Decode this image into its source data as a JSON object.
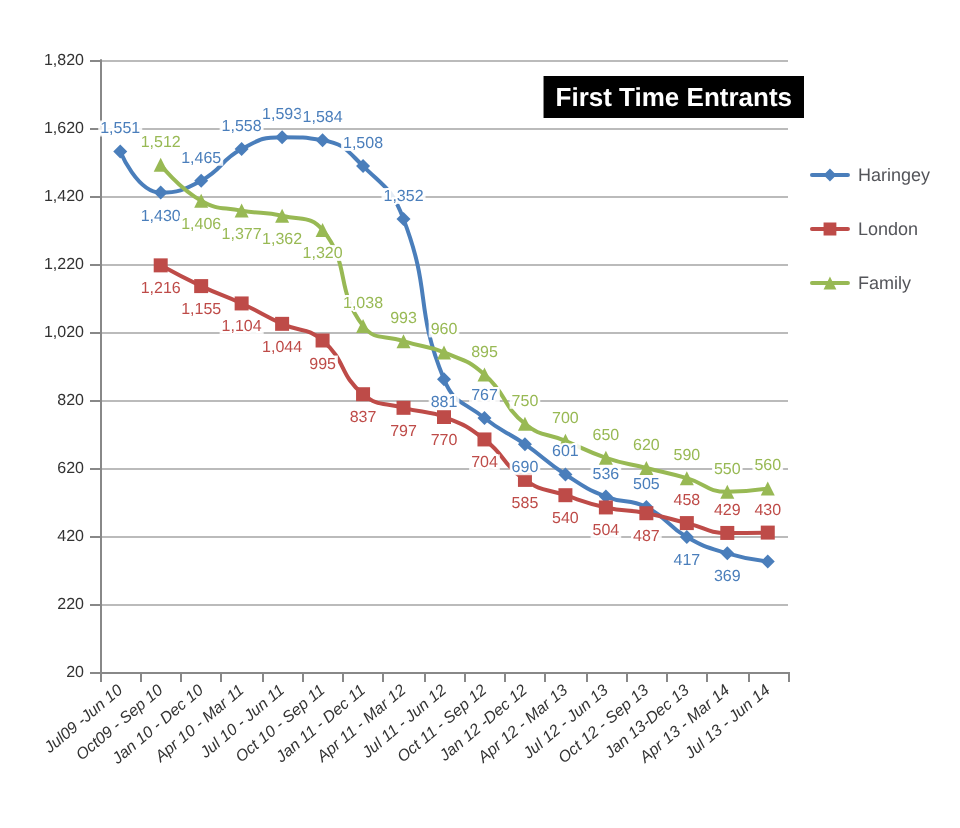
{
  "chart_data": {
    "type": "line",
    "title": "First Time Entrants",
    "categories": [
      "Jul09 -Jun 10",
      "Oct09 - Sep 10",
      "Jan 10 - Dec 10",
      "Apr 10 - Mar 11",
      "Jul 10 - Jun 11",
      "Oct 10 - Sep 11",
      "Jan 11 - Dec 11",
      "Apr 11 - Mar 12",
      "Jul 11 - Jun 12",
      "Oct 11 - Sep 12",
      "Jan 12 -Dec 12",
      "Apr 12 - Mar 13",
      "Jul 12 - Jun 13",
      "Oct 12 - Sep 13",
      "Jan 13-Dec 13",
      "Apr 13 - Mar 14",
      "Jul 13 - Jun 14"
    ],
    "series": [
      {
        "name": "Haringey",
        "color": "#4a7ebb",
        "marker": "diamond",
        "values": [
          1551,
          1430,
          1465,
          1558,
          1593,
          1584,
          1508,
          1352,
          881,
          767,
          690,
          601,
          536,
          505,
          417,
          369,
          345
        ],
        "value_labels": [
          "1,551",
          "1,430",
          "1,465",
          "1,558",
          "1,593",
          "1,584",
          "1,508",
          "1,352",
          "881",
          "767",
          "690",
          "601",
          "536",
          "505",
          "417",
          "369",
          null
        ]
      },
      {
        "name": "London",
        "color": "#be4b48",
        "marker": "square",
        "values": [
          null,
          1216,
          1155,
          1104,
          1044,
          995,
          837,
          797,
          770,
          704,
          585,
          540,
          504,
          487,
          458,
          429,
          430
        ],
        "value_labels": [
          null,
          "1,216",
          "1,155",
          "1,104",
          "1,044",
          "995",
          "837",
          "797",
          "770",
          "704",
          "585",
          "540",
          "504",
          "487",
          "458",
          "429",
          "430"
        ]
      },
      {
        "name": "Family",
        "color": "#98b954",
        "marker": "triangle",
        "values": [
          null,
          1512,
          1406,
          1377,
          1362,
          1320,
          1038,
          993,
          960,
          895,
          750,
          700,
          650,
          620,
          590,
          550,
          560
        ],
        "value_labels": [
          null,
          "1,512",
          "1,406",
          "1,377",
          "1,362",
          "1,320",
          "1,038",
          "993",
          "960",
          "895",
          "750",
          "700",
          "650",
          "620",
          "590",
          "550",
          "560"
        ]
      }
    ],
    "ylim": [
      20,
      1820
    ],
    "yticks": [
      {
        "value": 20,
        "label": "20"
      },
      {
        "value": 220,
        "label": "220"
      },
      {
        "value": 420,
        "label": "420"
      },
      {
        "value": 620,
        "label": "620"
      },
      {
        "value": 820,
        "label": "820"
      },
      {
        "value": 1020,
        "label": "1,020"
      },
      {
        "value": 1220,
        "label": "1,220"
      },
      {
        "value": 1420,
        "label": "1,420"
      },
      {
        "value": 1620,
        "label": "1,620"
      },
      {
        "value": 1820,
        "label": "1,820"
      }
    ],
    "grid": "y",
    "legend": "right",
    "line_style": "solid"
  }
}
